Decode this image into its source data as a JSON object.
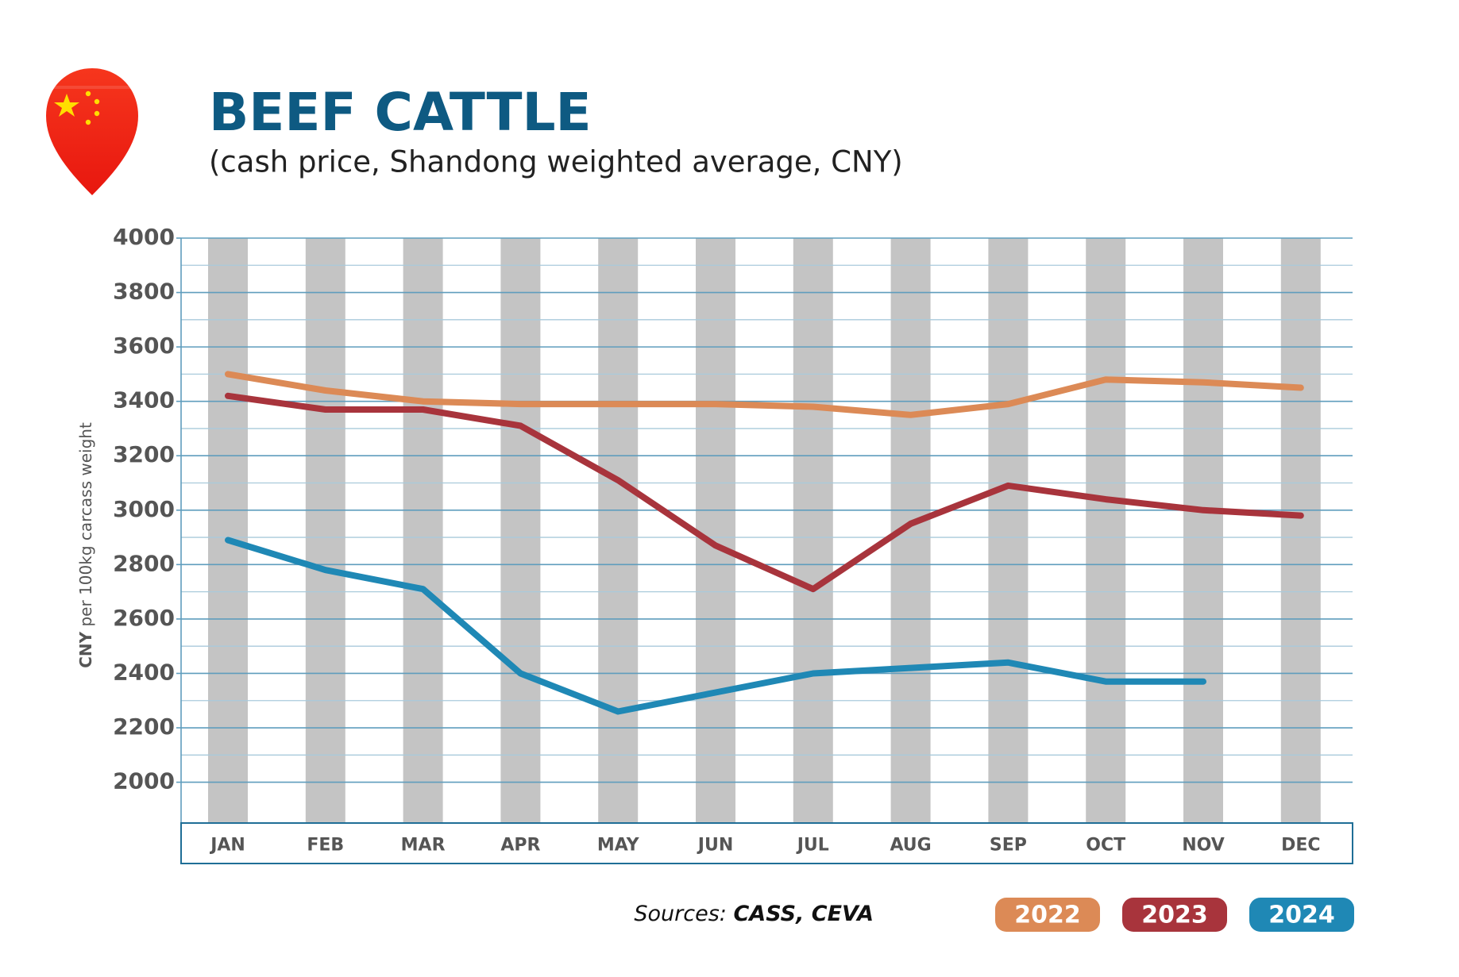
{
  "chart_data": {
    "type": "line",
    "title": "BEEF CATTLE",
    "subtitle": "(cash price, Shandong weighted average, CNY)",
    "ylabel": {
      "unit": "CNY",
      "text": "per 100kg carcass weight"
    },
    "sources": {
      "label": "Sources:",
      "names": "CASS, CEVA"
    },
    "categories": [
      "JAN",
      "FEB",
      "MAR",
      "APR",
      "MAY",
      "JUN",
      "JUL",
      "AUG",
      "SEP",
      "OCT",
      "NOV",
      "DEC"
    ],
    "series": [
      {
        "name": "2022",
        "color": "#dc8a56",
        "values": [
          3500,
          3440,
          3400,
          3390,
          3390,
          3390,
          3380,
          3350,
          3390,
          3480,
          3470,
          3450
        ]
      },
      {
        "name": "2023",
        "color": "#a8343c",
        "values": [
          3420,
          3370,
          3370,
          3310,
          3110,
          2870,
          2710,
          2950,
          3090,
          3040,
          3000,
          2980
        ]
      },
      {
        "name": "2024",
        "color": "#1f88b5",
        "values": [
          2890,
          2780,
          2710,
          2400,
          2260,
          2330,
          2400,
          2420,
          2440,
          2370,
          2370,
          null
        ]
      }
    ],
    "ylim": [
      1850,
      4000
    ],
    "yticks": [
      2000,
      2200,
      2400,
      2600,
      2800,
      3000,
      3200,
      3400,
      3600,
      3800,
      4000
    ],
    "minor_yticks": [
      2100,
      2300,
      2500,
      2700,
      2900,
      3100,
      3300,
      3500,
      3700,
      3900
    ],
    "grid": true
  }
}
